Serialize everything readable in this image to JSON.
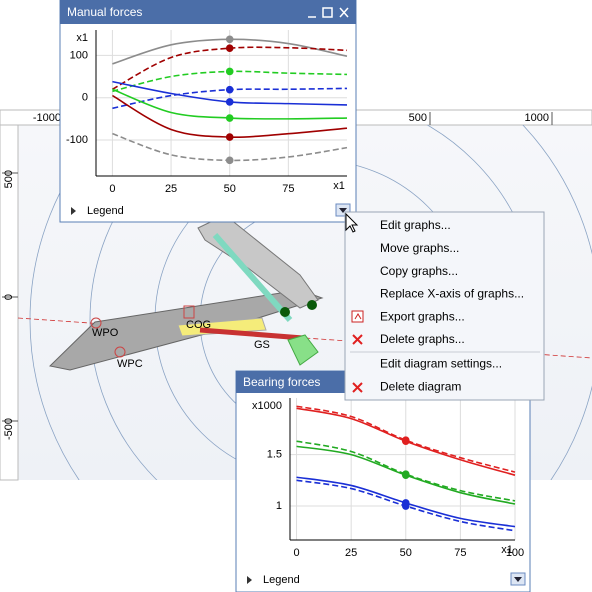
{
  "canvas": {
    "top_ruler": [
      -1000,
      500,
      1000
    ],
    "left_ruler": [
      500,
      0,
      -500
    ],
    "labels": {
      "wpo": "WPO",
      "wpc": "WPC",
      "cog": "COG",
      "gs": "GS"
    }
  },
  "manual_forces": {
    "title": "Manual forces",
    "legend": "Legend",
    "chart": {
      "type": "line",
      "y_unit_label": "x1",
      "x_unit_label": "x1",
      "x": [
        0,
        25,
        50,
        75,
        100
      ],
      "xlim": [
        -7,
        100
      ],
      "ylim": [
        -185,
        160
      ],
      "xticks": [
        0,
        25,
        50,
        75
      ],
      "yticks": [
        -100,
        0,
        100
      ],
      "grid": true,
      "marker_x": 50,
      "series": [
        {
          "color": "#8c8c8c",
          "dashed": false,
          "values": [
            80,
            125,
            138,
            128,
            98
          ]
        },
        {
          "color": "#a00000",
          "dashed": true,
          "values": [
            20,
            95,
            117,
            118,
            112
          ]
        },
        {
          "color": "#22cc22",
          "dashed": true,
          "values": [
            15,
            50,
            62,
            58,
            55
          ]
        },
        {
          "color": "#1a2fd6",
          "dashed": true,
          "values": [
            -25,
            5,
            19,
            20,
            22
          ]
        },
        {
          "color": "#1a2fd6",
          "dashed": false,
          "values": [
            38,
            10,
            -10,
            -14,
            -17
          ]
        },
        {
          "color": "#22cc22",
          "dashed": false,
          "values": [
            20,
            -35,
            -48,
            -50,
            -48
          ]
        },
        {
          "color": "#a00000",
          "dashed": false,
          "values": [
            5,
            -75,
            -93,
            -85,
            -72
          ]
        },
        {
          "color": "#8c8c8c",
          "dashed": true,
          "values": [
            -85,
            -135,
            -148,
            -140,
            -118
          ]
        }
      ]
    }
  },
  "context_menu": {
    "groups": [
      [
        "Edit graphs...",
        "Move graphs...",
        "Copy graphs...",
        "Replace X-axis of graphs...",
        "Export graphs...",
        "Delete graphs..."
      ],
      [
        "Edit diagram settings...",
        "Delete diagram"
      ]
    ]
  },
  "bearing_forces": {
    "title": "Bearing forces",
    "legend": "Legend",
    "chart": {
      "type": "line",
      "y_unit_label": "x1000",
      "x_unit_label": "x1",
      "x": [
        0,
        25,
        50,
        75,
        100
      ],
      "xlim": [
        -3,
        100
      ],
      "ylim": [
        0.67,
        2.05
      ],
      "xticks": [
        0,
        25,
        50,
        75,
        100
      ],
      "yticks": [
        1,
        1.5
      ],
      "grid": true,
      "marker_x": 50,
      "series": [
        {
          "color": "#e02020",
          "dashed": false,
          "values": [
            1.95,
            1.85,
            1.63,
            1.45,
            1.3
          ]
        },
        {
          "color": "#e02020",
          "dashed": true,
          "values": [
            1.97,
            1.87,
            1.64,
            1.47,
            1.33
          ]
        },
        {
          "color": "#22aa22",
          "dashed": false,
          "values": [
            1.58,
            1.5,
            1.3,
            1.13,
            1.02
          ]
        },
        {
          "color": "#22aa22",
          "dashed": true,
          "values": [
            1.63,
            1.53,
            1.31,
            1.15,
            1.05
          ]
        },
        {
          "color": "#1a2fd6",
          "dashed": false,
          "values": [
            1.28,
            1.2,
            1.03,
            0.88,
            0.8
          ]
        },
        {
          "color": "#1a2fd6",
          "dashed": true,
          "values": [
            1.25,
            1.17,
            1.0,
            0.85,
            0.76
          ]
        }
      ]
    }
  }
}
